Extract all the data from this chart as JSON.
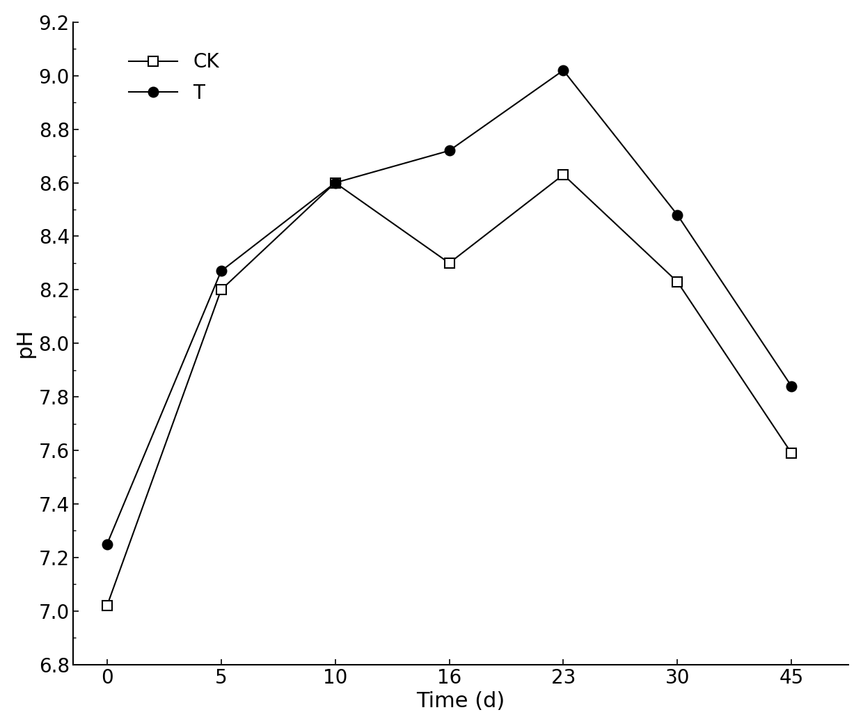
{
  "x_positions": [
    0,
    1,
    2,
    3,
    4,
    5,
    6
  ],
  "x_labels": [
    "0",
    "5",
    "10",
    "16",
    "23",
    "30",
    "45"
  ],
  "ck_y": [
    7.02,
    8.2,
    8.6,
    8.3,
    8.63,
    8.23,
    7.59
  ],
  "t_y": [
    7.25,
    8.27,
    8.6,
    8.72,
    9.02,
    8.48,
    7.84
  ],
  "ck_label": "CK",
  "t_label": "T",
  "xlabel": "Time (d)",
  "ylabel": "pH",
  "xlim": [
    -0.3,
    6.5
  ],
  "ylim": [
    6.8,
    9.2
  ],
  "yticks": [
    6.8,
    7.0,
    7.2,
    7.4,
    7.6,
    7.8,
    8.0,
    8.2,
    8.4,
    8.6,
    8.8,
    9.0,
    9.2
  ],
  "line_color": "#000000",
  "ck_marker": "s",
  "t_marker": "o",
  "ck_marker_face": "#ffffff",
  "t_marker_face": "#000000",
  "marker_size": 10,
  "linewidth": 1.5,
  "xlabel_fontsize": 22,
  "ylabel_fontsize": 22,
  "tick_fontsize": 20,
  "legend_fontsize": 20,
  "legend_handlelength": 2.5,
  "legend_handletextpad": 0.8,
  "legend_labelspacing": 0.6
}
